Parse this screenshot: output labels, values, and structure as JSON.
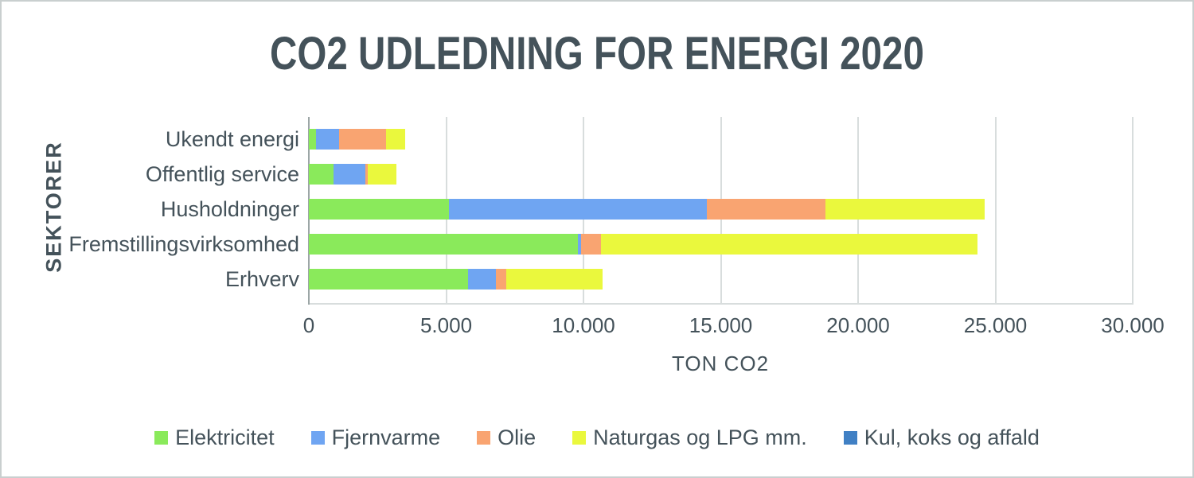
{
  "chart_data": {
    "type": "bar",
    "orientation": "horizontal",
    "stacked": true,
    "title": "CO2 UDLEDNING FOR ENERGI 2020",
    "xlabel": "TON CO2",
    "ylabel": "SEKTORER",
    "categories": [
      "Ukendt energi",
      "Offentlig service",
      "Husholdninger",
      "Fremstillingsvirksomhed",
      "Erhverv"
    ],
    "series": [
      {
        "name": "Elektricitet",
        "color": "#8aea5b",
        "values": [
          250,
          900,
          5100,
          9800,
          5800
        ]
      },
      {
        "name": "Fjernvarme",
        "color": "#6fa5f2",
        "values": [
          850,
          1150,
          9400,
          100,
          1000
        ]
      },
      {
        "name": "Olie",
        "color": "#f9a471",
        "values": [
          1700,
          100,
          4300,
          750,
          400
        ]
      },
      {
        "name": "Naturgas og LPG mm.",
        "color": "#eaf83d",
        "values": [
          700,
          1050,
          5800,
          13700,
          3500
        ]
      },
      {
        "name": "Kul, koks og affald",
        "color": "#4080c4",
        "values": [
          0,
          0,
          0,
          0,
          0
        ]
      }
    ],
    "x_ticks": [
      "0",
      "5.000",
      "10.000",
      "15.000",
      "20.000",
      "25.000",
      "30.000"
    ],
    "xlim": [
      0,
      30000
    ],
    "x_tick_step": 5000,
    "grid": true,
    "legend_position": "bottom"
  },
  "colors": {
    "text": "#44525a",
    "gridline": "#d8dddd",
    "axis_line": "#9ca6a6",
    "page_border": "#c9cfcf",
    "background": "#ffffff"
  }
}
